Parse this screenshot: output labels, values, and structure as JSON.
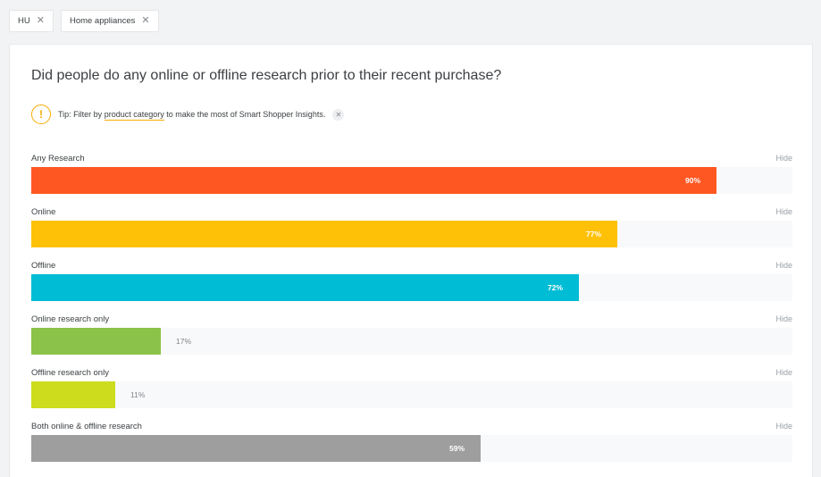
{
  "filters": [
    {
      "label": "HU"
    },
    {
      "label": "Home appliances"
    }
  ],
  "question": "Did people do any online or offline research prior to their recent purchase?",
  "tip": {
    "prefix": "Tip: Filter by ",
    "link": "product category",
    "suffix": " to make the most of Smart Shopper Insights.",
    "icon": "alert-icon",
    "accent": "#f9ab00"
  },
  "hide_label": "Hide",
  "chart_data": {
    "type": "bar",
    "orientation": "horizontal",
    "categories": [
      "Any Research",
      "Online",
      "Offline",
      "Online research only",
      "Offline research only",
      "Both online & offline research"
    ],
    "values": [
      90,
      77,
      72,
      17,
      11,
      59
    ],
    "value_labels": [
      "90%",
      "77%",
      "72%",
      "17%",
      "11%",
      "59%"
    ],
    "colors": [
      "#ff5722",
      "#ffc107",
      "#00bcd4",
      "#8bc34a",
      "#cddc1d",
      "#9e9e9e"
    ],
    "xlim": [
      0,
      100
    ],
    "grid": false
  }
}
